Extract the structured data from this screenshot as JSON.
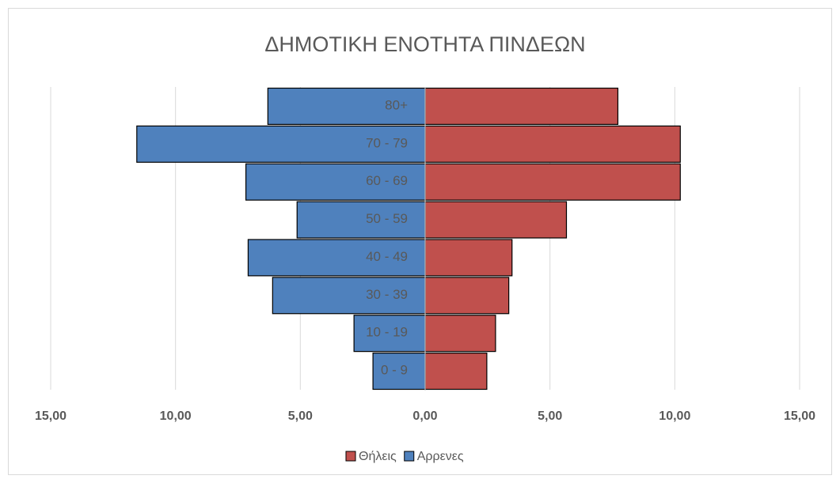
{
  "chart_data": {
    "type": "population-pyramid",
    "title": "ΔΗΜΟΤΙΚΗ ΕΝΟΤΗΤΑ ΠΙΝΔΕΩΝ",
    "categories": [
      "80+",
      "70 - 79",
      "60 - 69",
      "50 - 59",
      "40 - 49",
      "30 - 39",
      "10 - 19",
      "0 - 9"
    ],
    "series": [
      {
        "name": "Θήλεις",
        "color": "#c0504d",
        "values": [
          7.72,
          10.22,
          10.22,
          5.66,
          3.48,
          3.35,
          2.82,
          2.47
        ]
      },
      {
        "name": "Αρρενες",
        "color": "#4f81bd",
        "values": [
          -6.3,
          -11.55,
          -7.18,
          -5.13,
          -7.09,
          -6.11,
          -2.85,
          -2.09
        ]
      }
    ],
    "xlim": [
      -15,
      15
    ],
    "xticks": [
      {
        "value": -15,
        "label": "15,00"
      },
      {
        "value": -10,
        "label": "10,00"
      },
      {
        "value": -5,
        "label": "5,00"
      },
      {
        "value": 0,
        "label": "0,00"
      },
      {
        "value": 5,
        "label": "5,00"
      },
      {
        "value": 10,
        "label": "10,00"
      },
      {
        "value": 15,
        "label": "15,00"
      }
    ],
    "grid": true,
    "legend": "bottom"
  }
}
